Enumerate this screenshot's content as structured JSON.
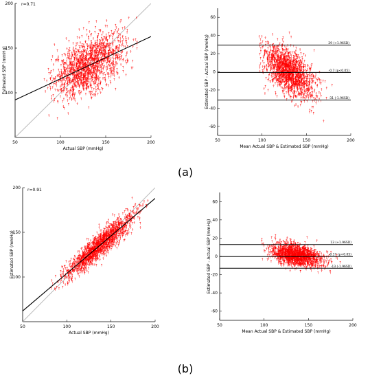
{
  "figure": {
    "label_a": "(a)",
    "label_b": "(b)"
  },
  "chart_data": [
    {
      "id": "a_scatter",
      "type": "scatter",
      "title": "",
      "r_label": "r=0.71",
      "xlabel": "Actual SBP (mmHg)",
      "ylabel": "Estimated SBP (mmHg)",
      "xlim": [
        50,
        200
      ],
      "ylim": [
        50,
        200
      ],
      "xticks": [
        50,
        100,
        150,
        200
      ],
      "yticks": [
        100,
        150,
        200
      ],
      "grid": false,
      "point_color": "#ff0000",
      "regression_line": {
        "x": [
          50,
          200
        ],
        "y": [
          92,
          163
        ],
        "color": "#000000"
      },
      "identity_line": {
        "x": [
          50,
          200
        ],
        "y": [
          50,
          200
        ],
        "color": "#bbbbbb"
      },
      "point_cloud": {
        "count": 1500,
        "x_mean": 130,
        "x_sd": 20,
        "x_range": [
          80,
          185
        ],
        "slope": 0.47,
        "intercept": 68.5,
        "resid_sd": 15
      }
    },
    {
      "id": "a_bland",
      "type": "scatter",
      "title": "",
      "xlabel": "Mean Actual SBP & Estimated SBP (mmHg)",
      "ylabel": "Estimated SBP - Actual SBP (mmHg)",
      "xlim": [
        50,
        200
      ],
      "ylim": [
        -70,
        70
      ],
      "xticks": [
        50,
        100,
        150,
        200
      ],
      "yticks": [
        -60,
        -40,
        -20,
        0,
        20,
        40,
        60
      ],
      "grid": false,
      "point_color": "#ff0000",
      "hlines": [
        {
          "y": 29.4,
          "label": "29 (+1.96SD)"
        },
        {
          "y": -0.7,
          "label": "-0.7 (p<0.05)"
        },
        {
          "y": -31,
          "label": "-31 (-1.96SD)"
        }
      ],
      "point_cloud": {
        "count": 1500,
        "x_mean": 128,
        "x_sd": 15,
        "x_range": [
          95,
          180
        ],
        "slope": -0.56,
        "intercept": 70.5,
        "resid_sd": 12
      }
    },
    {
      "id": "b_scatter",
      "type": "scatter",
      "title": "",
      "r_label": "r=0.91",
      "xlabel": "Actual SBP (mmHg)",
      "ylabel": "Estimated SBP (mmHg)",
      "xlim": [
        50,
        200
      ],
      "ylim": [
        50,
        200
      ],
      "xticks": [
        50,
        100,
        150,
        200
      ],
      "yticks": [
        100,
        150,
        200
      ],
      "grid": false,
      "point_color": "#ff0000",
      "regression_line": {
        "x": [
          50,
          200
        ],
        "y": [
          62,
          188
        ],
        "color": "#000000"
      },
      "identity_line": {
        "x": [
          50,
          200
        ],
        "y": [
          50,
          200
        ],
        "color": "#bbbbbb"
      },
      "point_cloud": {
        "count": 1500,
        "x_mean": 135,
        "x_sd": 20,
        "x_range": [
          80,
          190
        ],
        "slope": 0.84,
        "intercept": 20,
        "resid_sd": 7
      }
    },
    {
      "id": "b_bland",
      "type": "scatter",
      "title": "",
      "xlabel": "Mean Actual SBP & Estimated SBP (mmHg)",
      "ylabel": "Estimated SBP - Actual SBP (mmHg)",
      "xlim": [
        50,
        200
      ],
      "ylim": [
        -70,
        70
      ],
      "xticks": [
        50,
        100,
        150,
        200
      ],
      "yticks": [
        -60,
        -40,
        -20,
        0,
        20,
        40,
        60
      ],
      "grid": false,
      "point_color": "#ff0000",
      "hlines": [
        {
          "y": 13,
          "label": "13 (+1.96SD)"
        },
        {
          "y": -0.17,
          "label": "-0.17 (p<0.05)"
        },
        {
          "y": -13,
          "label": "-13 (-1.96SD)"
        }
      ],
      "point_cloud": {
        "count": 1500,
        "x_mean": 135,
        "x_sd": 15,
        "x_range": [
          85,
          185
        ],
        "slope": -0.15,
        "intercept": 20,
        "resid_sd": 6
      }
    }
  ]
}
